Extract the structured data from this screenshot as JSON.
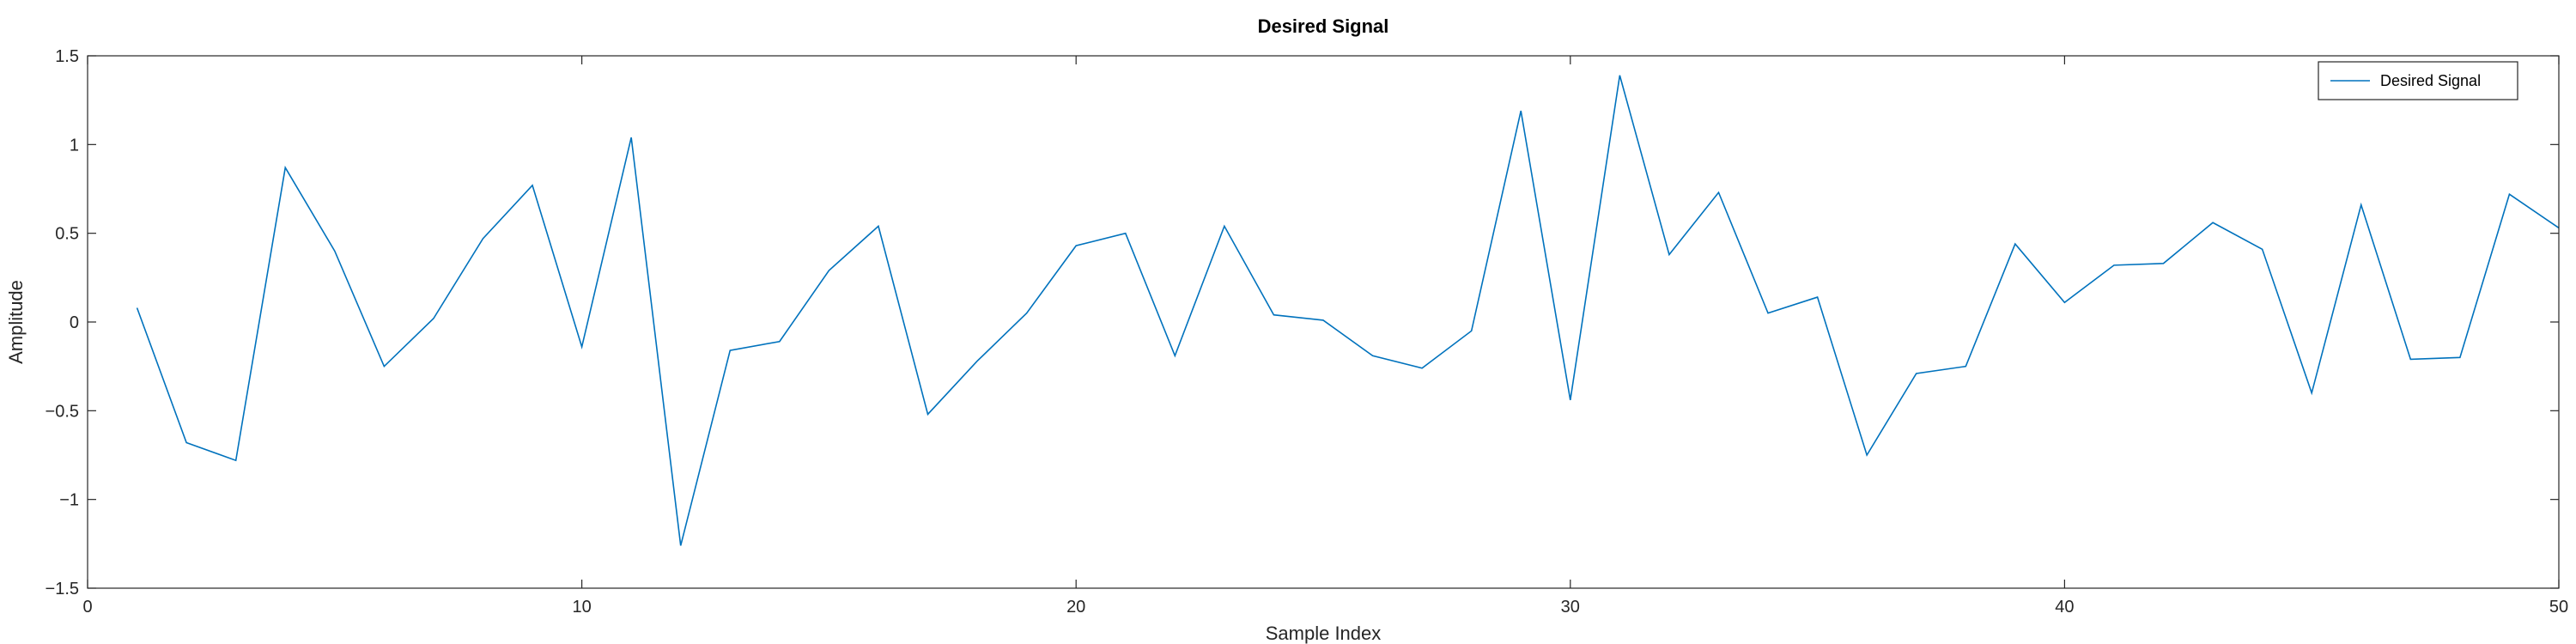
{
  "chart_data": {
    "type": "line",
    "title": "Desired Signal",
    "xlabel": "Sample Index",
    "ylabel": "Amplitude",
    "xlim": [
      0,
      50
    ],
    "ylim": [
      -1.5,
      1.5
    ],
    "xticks": [
      0,
      10,
      20,
      30,
      40,
      50
    ],
    "yticks": [
      -1.5,
      -1,
      -0.5,
      0,
      0.5,
      1,
      1.5
    ],
    "xtick_labels": [
      "0",
      "10",
      "20",
      "30",
      "40",
      "50"
    ],
    "ytick_labels": [
      "−1.5",
      "−1",
      "−0.5",
      "0",
      "0.5",
      "1",
      "1.5"
    ],
    "grid": false,
    "legend_position": "top-right",
    "series": [
      {
        "name": "Desired Signal",
        "color": "#0072BD",
        "x": [
          1,
          2,
          3,
          4,
          5,
          6,
          7,
          8,
          9,
          10,
          11,
          12,
          13,
          14,
          15,
          16,
          17,
          18,
          19,
          20,
          21,
          22,
          23,
          24,
          25,
          26,
          27,
          28,
          29,
          30,
          31,
          32,
          33,
          34,
          35,
          36,
          37,
          38,
          39,
          40,
          41,
          42,
          43,
          44,
          45,
          46,
          47,
          48,
          49,
          50
        ],
        "y": [
          0.08,
          -0.68,
          -0.78,
          0.87,
          0.4,
          -0.25,
          0.02,
          0.47,
          0.77,
          -0.14,
          1.04,
          -1.26,
          -0.16,
          -0.11,
          0.29,
          0.54,
          -0.52,
          -0.22,
          0.05,
          0.43,
          0.5,
          -0.19,
          0.54,
          0.04,
          0.01,
          -0.19,
          -0.26,
          -0.05,
          1.19,
          -0.44,
          1.39,
          0.38,
          0.73,
          0.05,
          0.14,
          -0.75,
          -0.29,
          -0.25,
          0.44,
          0.11,
          0.32,
          0.33,
          0.56,
          0.41,
          -0.4,
          0.66,
          -0.21,
          -0.2,
          0.72,
          0.53
        ]
      }
    ]
  }
}
